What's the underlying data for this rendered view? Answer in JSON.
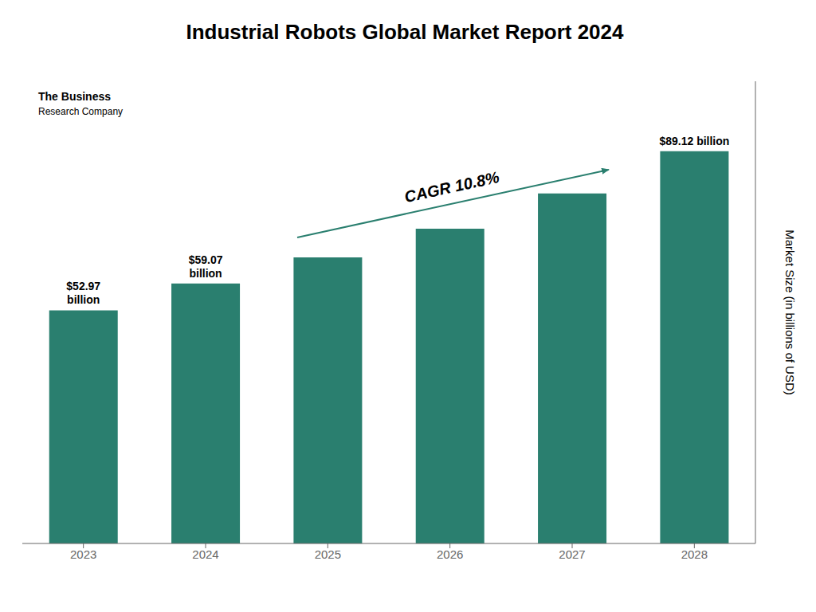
{
  "chart_data": {
    "type": "bar",
    "title": "Industrial Robots Global Market Report 2024",
    "y_label": "Market Size (in billions of USD)",
    "categories": [
      "2023",
      "2024",
      "2025",
      "2026",
      "2027",
      "2028"
    ],
    "values": [
      52.97,
      59.07,
      65.0,
      71.5,
      79.5,
      89.12
    ],
    "value_labels": [
      "$52.97\nbillion",
      "$59.07\nbillion",
      null,
      null,
      null,
      "$89.12 billion"
    ],
    "color": "#2a7f6f",
    "ylim": [
      0,
      105
    ],
    "grid": false,
    "tick_labels": "x",
    "annotations": [
      "CAGR 10.8%",
      "The Business",
      "Research Company"
    ]
  }
}
